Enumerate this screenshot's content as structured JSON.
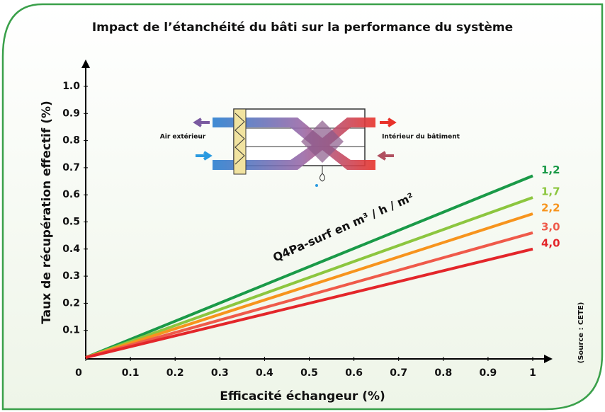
{
  "chart_data": {
    "type": "line",
    "title": "Impact de l’étanchéité du bâti sur la performance du système",
    "x_label": "Efficacité échangeur (%)",
    "y_label": "Taux de récupération effectif (%)",
    "annotation": "Q4Pa-surf en m³ / h / m²",
    "source": "(Source : CETE)",
    "diagram_labels": [
      "Air extérieur",
      "Intérieur du bâtiment"
    ],
    "x": [
      0,
      1
    ],
    "xlim": [
      0,
      1
    ],
    "xticks": [
      0,
      0.1,
      0.2,
      0.3,
      0.4,
      0.5,
      0.6,
      0.7,
      0.8,
      0.9,
      1
    ],
    "ylim": [
      0,
      1
    ],
    "yticks": [
      0.1,
      0.2,
      0.3,
      0.4,
      0.5,
      0.6,
      0.7,
      0.8,
      0.9,
      {
        "value": 1,
        "label": "1.0"
      }
    ],
    "grid": false,
    "series": [
      {
        "name": "1,2",
        "color": "#1a9a48",
        "values": [
          0,
          0.67
        ]
      },
      {
        "name": "1,7",
        "color": "#8cc63f",
        "values": [
          0,
          0.59
        ]
      },
      {
        "name": "2,2",
        "color": "#f7941d",
        "values": [
          0,
          0.53
        ]
      },
      {
        "name": "3,0",
        "color": "#ef5a4a",
        "values": [
          0,
          0.46
        ]
      },
      {
        "name": "4,0",
        "color": "#e3262a",
        "values": [
          0,
          0.4
        ]
      }
    ]
  }
}
